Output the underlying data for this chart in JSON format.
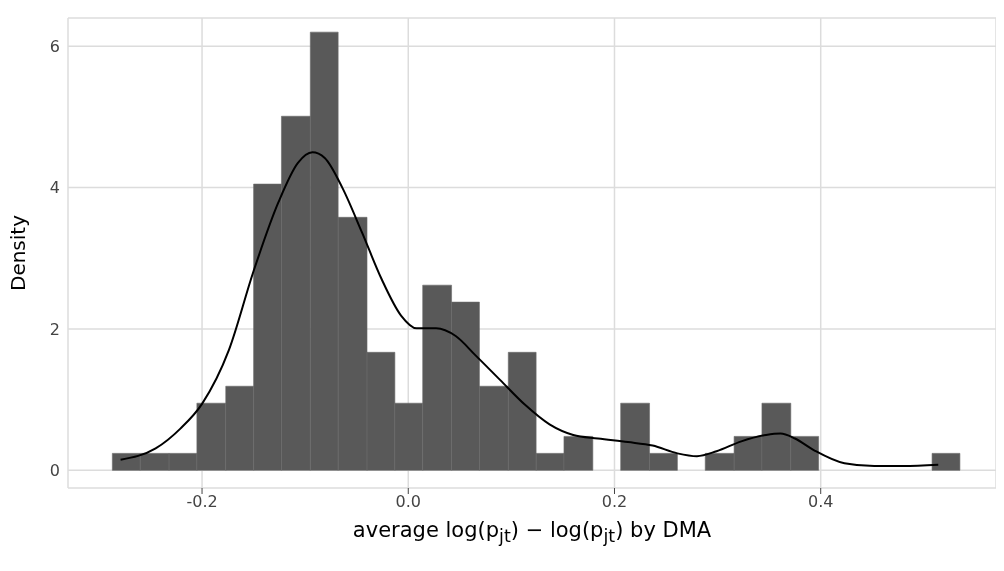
{
  "chart_data": {
    "type": "histogram",
    "xlabel": "average log(p$_{jt}$) − log(p$_{jt}$) by DMA",
    "ylabel": "Density",
    "bins": [
      -0.287,
      -0.26,
      -0.232,
      -0.205,
      -0.177,
      -0.15,
      -0.123,
      -0.095,
      -0.068,
      -0.04,
      -0.013,
      0.014,
      0.042,
      0.069,
      0.097,
      0.124,
      0.151,
      0.179,
      0.206,
      0.234,
      0.261,
      0.288,
      0.316,
      0.343,
      0.371,
      0.398,
      0.508,
      0.535
    ],
    "values": [
      0.24,
      0.24,
      0.24,
      0.95,
      1.19,
      4.05,
      5.01,
      6.2,
      3.58,
      1.67,
      0.95,
      2.62,
      2.38,
      1.19,
      1.67,
      0.24,
      0.48,
      0,
      0.95,
      0.24,
      0,
      0.24,
      0.48,
      0.95,
      0.48,
      0,
      0.24
    ],
    "color": "#595959",
    "series": [
      {
        "type": "line",
        "color": "#000000",
        "x": [
          -0.279,
          -0.245,
          -0.221,
          -0.2,
          -0.174,
          -0.15,
          -0.126,
          -0.107,
          -0.093,
          -0.081,
          -0.064,
          -0.045,
          -0.026,
          -0.007,
          0.008,
          0.027,
          0.046,
          0.065,
          0.089,
          0.113,
          0.137,
          0.16,
          0.184,
          0.213,
          0.237,
          0.261,
          0.28,
          0.299,
          0.323,
          0.347,
          0.361,
          0.375,
          0.394,
          0.423,
          0.452,
          0.48,
          0.514
        ],
        "values": [
          0.15,
          0.31,
          0.59,
          0.94,
          1.7,
          2.82,
          3.79,
          4.35,
          4.5,
          4.42,
          4.0,
          3.37,
          2.71,
          2.19,
          2.01,
          2.01,
          1.9,
          1.63,
          1.28,
          0.93,
          0.65,
          0.5,
          0.45,
          0.4,
          0.35,
          0.24,
          0.2,
          0.27,
          0.41,
          0.5,
          0.52,
          0.45,
          0.28,
          0.1,
          0.06,
          0.06,
          0.08
        ]
      }
    ],
    "xlim": [
      -0.33,
      0.57
    ],
    "ylim": [
      -0.25,
      6.4
    ],
    "xticks": [
      {
        "value": -0.2,
        "label": "-0.2"
      },
      {
        "value": 0,
        "label": "0.0"
      },
      {
        "value": 0.2,
        "label": "0.2"
      },
      {
        "value": 0.4,
        "label": "0.4"
      }
    ],
    "yticks": [
      0,
      2,
      4,
      6
    ],
    "grid": true
  }
}
